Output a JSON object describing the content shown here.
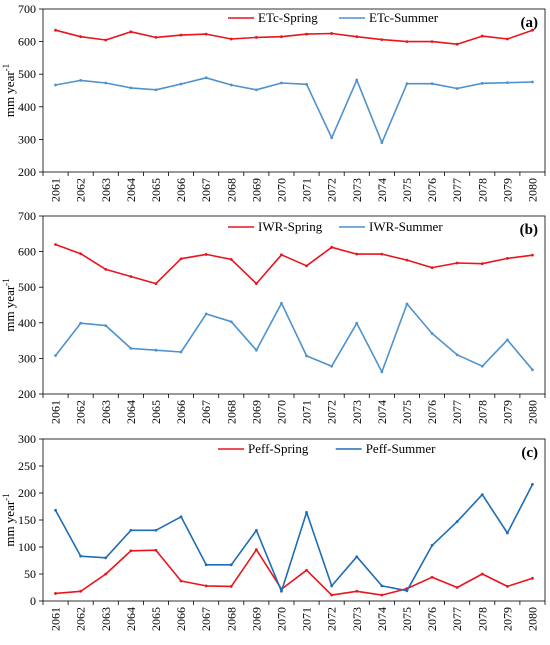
{
  "colors": {
    "spring": "#e8151c",
    "summer": "#4f92cc",
    "summer_c": "#1f6db5",
    "axis": "#000000"
  },
  "chart_data": [
    {
      "type": "line",
      "panel_label": "(a)",
      "ylabel": "mm year",
      "ylabel_sup": "-1",
      "xlabel": "",
      "ylim": [
        200,
        700
      ],
      "yticks": [
        200,
        300,
        400,
        500,
        600,
        700
      ],
      "grid": false,
      "legend": "top",
      "categories": [
        "2061",
        "2062",
        "2063",
        "2064",
        "2065",
        "2066",
        "2067",
        "2068",
        "2069",
        "2070",
        "2071",
        "2072",
        "2073",
        "2074",
        "2075",
        "2076",
        "2077",
        "2078",
        "2079",
        "2080"
      ],
      "series": [
        {
          "name": "ETc-Spring",
          "color": "#e8151c",
          "values": [
            635,
            615,
            605,
            630,
            613,
            620,
            623,
            608,
            613,
            615,
            623,
            625,
            615,
            606,
            600,
            600,
            592,
            617,
            608,
            635
          ]
        },
        {
          "name": "ETc-Summer",
          "color": "#4f92cc",
          "values": [
            467,
            481,
            473,
            458,
            452,
            470,
            489,
            467,
            452,
            473,
            469,
            305,
            482,
            290,
            471,
            471,
            456,
            472,
            474,
            476
          ]
        }
      ]
    },
    {
      "type": "line",
      "panel_label": "(b)",
      "ylabel": "mm year",
      "ylabel_sup": "-1",
      "xlabel": "",
      "ylim": [
        200,
        700
      ],
      "yticks": [
        200,
        300,
        400,
        500,
        600,
        700
      ],
      "grid": false,
      "legend": "top",
      "categories": [
        "2061",
        "2062",
        "2063",
        "2064",
        "2065",
        "2066",
        "2067",
        "2068",
        "2069",
        "2070",
        "2071",
        "2072",
        "2073",
        "2074",
        "2075",
        "2076",
        "2077",
        "2078",
        "2079",
        "2080"
      ],
      "series": [
        {
          "name": "IWR-Spring",
          "color": "#e8151c",
          "values": [
            620,
            594,
            550,
            530,
            510,
            580,
            592,
            578,
            510,
            591,
            560,
            612,
            593,
            593,
            576,
            555,
            568,
            566,
            581,
            590
          ]
        },
        {
          "name": "IWR-Summer",
          "color": "#4f92cc",
          "values": [
            308,
            399,
            392,
            328,
            323,
            318,
            425,
            403,
            323,
            455,
            307,
            278,
            399,
            262,
            453,
            370,
            310,
            278,
            352,
            268
          ]
        }
      ]
    },
    {
      "type": "line",
      "panel_label": "(c)",
      "ylabel": "mm year",
      "ylabel_sup": "-1",
      "xlabel": "",
      "ylim": [
        0,
        300
      ],
      "yticks": [
        0,
        50,
        100,
        150,
        200,
        250,
        300
      ],
      "grid": false,
      "legend": "top",
      "categories": [
        "2061",
        "2062",
        "2063",
        "2064",
        "2065",
        "2066",
        "2067",
        "2068",
        "2069",
        "2070",
        "2071",
        "2072",
        "2073",
        "2074",
        "2075",
        "2076",
        "2077",
        "2078",
        "2079",
        "2080"
      ],
      "series": [
        {
          "name": "Peff-Spring",
          "color": "#e8151c",
          "values": [
            14,
            18,
            50,
            93,
            94,
            37,
            28,
            27,
            95,
            22,
            57,
            11,
            18,
            11,
            23,
            44,
            25,
            50,
            27,
            42
          ]
        },
        {
          "name": "Peff-Summer",
          "color": "#1f6db5",
          "values": [
            168,
            83,
            80,
            131,
            131,
            156,
            67,
            67,
            131,
            18,
            164,
            28,
            82,
            28,
            19,
            103,
            147,
            197,
            126,
            216
          ]
        }
      ]
    }
  ]
}
